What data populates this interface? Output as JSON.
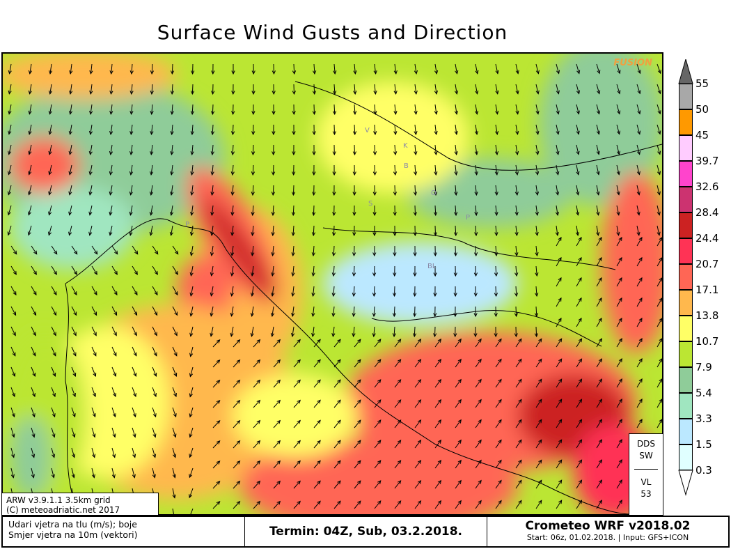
{
  "title": "Surface Wind Gusts and Direction",
  "map": {
    "watermark": "FUSION",
    "city_labels": [
      "B",
      "S",
      "P",
      "BL",
      "K",
      "V",
      "P",
      "O"
    ]
  },
  "info_box": {
    "line1": "ARW v3.9.1.1 3.5km grid",
    "line2": "(C) meteoadriatic.net 2017"
  },
  "station_box": {
    "top1": "DDS",
    "top2": "SW",
    "bottom1": "VL",
    "bottom2": "53"
  },
  "footer": {
    "desc1": "Udari vjetra na tlu (m/s); boje",
    "desc2": "Smjer vjetra na 10m (vektori)",
    "termin": "Termin: 04Z, Sub, 03.2.2018.",
    "model": "Crometeo WRF v2018.02",
    "start": "Start: 06z, 01.02.2018. | Input: GFS+ICON"
  },
  "legend": {
    "labels": [
      "55",
      "50",
      "45",
      "39.7",
      "32.6",
      "28.4",
      "24.4",
      "20.7",
      "17.1",
      "13.8",
      "10.7",
      "7.9",
      "5.4",
      "3.3",
      "1.5",
      "0.3"
    ],
    "colors": [
      "#a8a8a8",
      "#ff9900",
      "#ffccff",
      "#ff44cc",
      "#cc3370",
      "#cc2222",
      "#ff3355",
      "#ff6655",
      "#ffb84d",
      "#ffff66",
      "#bbe633",
      "#8fcc99",
      "#a0e6c0",
      "#bbe8ff",
      "#e0ffff"
    ],
    "top_arrow_color": "#666666"
  }
}
